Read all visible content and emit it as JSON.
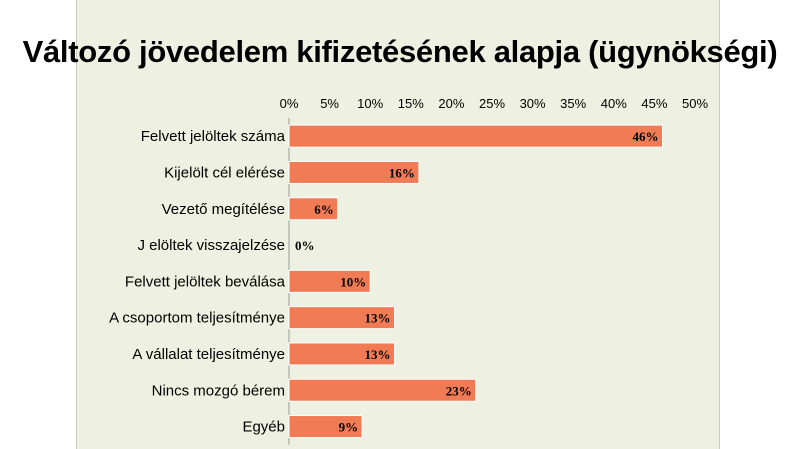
{
  "chart_data": {
    "type": "bar",
    "orientation": "horizontal",
    "title": "Változó jövedelem kifizetésének alapja (ügynökségi)",
    "categories": [
      "Felvett jelöltek száma",
      "Kijelölt cél elérése",
      "Vezető megítélése",
      "J elöltek visszajelzése",
      "Felvett jelöltek beválása",
      "A csoportom teljesítménye",
      "A vállalat teljesítménye",
      "Nincs mozgó bérem",
      "Egyéb"
    ],
    "values": [
      46,
      16,
      6,
      0,
      10,
      13,
      13,
      23,
      9
    ],
    "data_labels": [
      "46%",
      "16%",
      "6%",
      "0%",
      "10%",
      "13%",
      "13%",
      "23%",
      "9%"
    ],
    "xlim": [
      0,
      50
    ],
    "x_ticks": [
      "0%",
      "5%",
      "10%",
      "15%",
      "20%",
      "25%",
      "30%",
      "35%",
      "40%",
      "45%",
      "50%"
    ],
    "x_axis_position": "top",
    "grid": false,
    "legend": "none",
    "colors": {
      "bar": "#f07b55",
      "bar_edge": "#ffffff",
      "background": "#eef1e1"
    }
  }
}
